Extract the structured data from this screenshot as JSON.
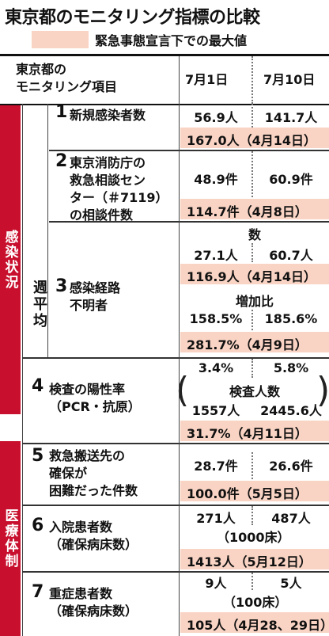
{
  "title": "東京都のモニタリング指標の比較",
  "legend": "緊急事態宣言下での最大値",
  "header": {
    "item": [
      "東京都の",
      "モニタリング項目"
    ],
    "col1": "7月1日",
    "col2": "7月10日"
  },
  "categories": {
    "infection": "感染状況",
    "medical": "医療体制",
    "weekly_avg": "週平均"
  },
  "colors": {
    "accent": "#c8102e",
    "highlight": "#f9d4c4"
  },
  "rows": [
    {
      "no": "1",
      "label": [
        "新規感染者数"
      ],
      "jul1": "56.9人",
      "jul10": "141.7人",
      "max": "167.0人（4月14日）"
    },
    {
      "no": "2",
      "label": [
        "東京消防庁の",
        "救急相談セン",
        "ター（＃7119）",
        "の相談件数"
      ],
      "jul1": "48.9件",
      "jul10": "60.9件",
      "max": "114.7件（4月8日）"
    },
    {
      "no": "3",
      "label": [
        "感染経路",
        "不明者"
      ],
      "sub1": "数",
      "jul1": "27.1人",
      "jul10": "60.7人",
      "max": "116.9人（4月14日）",
      "sub2": "増加比",
      "jul1_b": "158.5%",
      "jul10_b": "185.6%",
      "max_b": "281.7%（4月9日）"
    },
    {
      "no": "4",
      "label": [
        "検査の陽性率",
        "（PCR・抗原）"
      ],
      "jul1": "3.4%",
      "jul10": "5.8%",
      "sub": "検査人数",
      "jul1_b": "1557人",
      "jul10_b": "2445.6人",
      "max": "31.7%（4月11日）"
    },
    {
      "no": "5",
      "label": [
        "救急搬送先の",
        "確保が",
        "困難だった件数"
      ],
      "jul1": "28.7件",
      "jul10": "26.6件",
      "max": "100.0件（5月5日）"
    },
    {
      "no": "6",
      "label": [
        "入院患者数",
        "（確保病床数）"
      ],
      "jul1": "271人",
      "jul10": "487人",
      "sub": "（1000床）",
      "max": "1413人（5月12日）"
    },
    {
      "no": "7",
      "label": [
        "重症患者数",
        "（確保病床数）"
      ],
      "jul1": "9人",
      "jul10": "5人",
      "sub": "（100床）",
      "max": "105人（4月28、29日）"
    }
  ]
}
